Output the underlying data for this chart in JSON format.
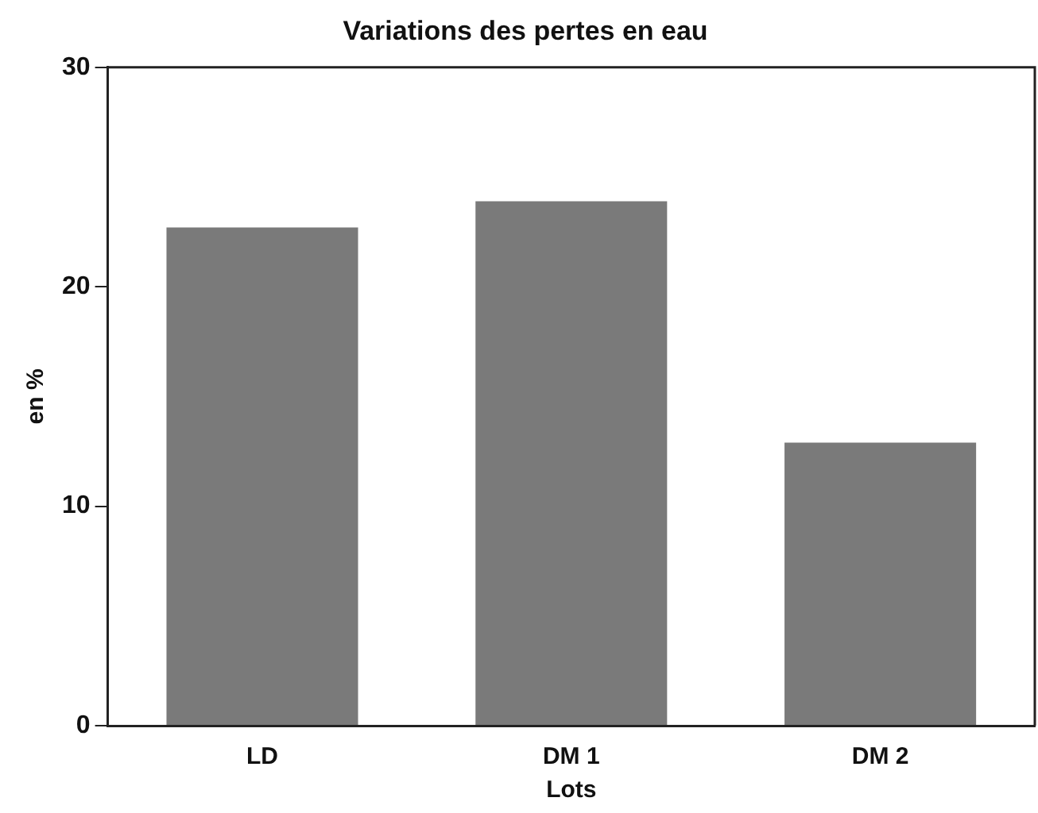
{
  "chart_data": {
    "type": "bar",
    "title": "Variations des pertes en eau",
    "xlabel": "Lots",
    "ylabel": "en %",
    "categories": [
      "LD",
      "DM 1",
      "DM 2"
    ],
    "values": [
      22.7,
      23.9,
      12.9
    ],
    "color": "#7a7a7a",
    "ylim": [
      0,
      30
    ],
    "yticks": [
      0,
      10,
      20,
      30
    ],
    "grid": false
  }
}
